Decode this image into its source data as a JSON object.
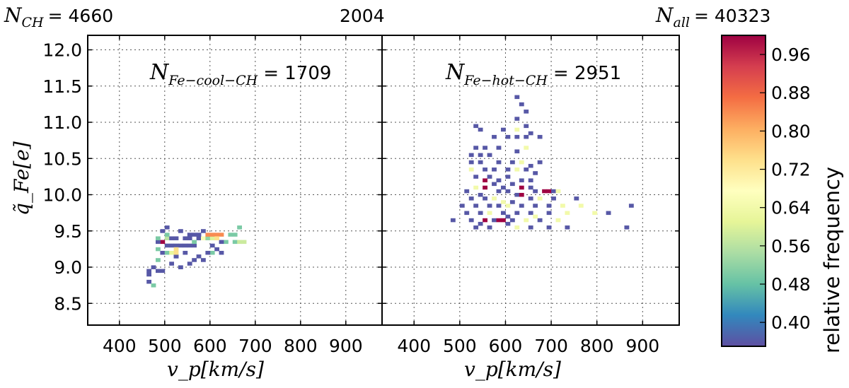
{
  "header": {
    "left_var": "N",
    "left_sub": "CH",
    "left_value": "= 4660",
    "center": "2004",
    "right_var": "N",
    "right_sub": "all",
    "right_value": "= 40323"
  },
  "chart_data": {
    "type": "heatmap",
    "xlabel": "v_p[km/s]",
    "ylabel": "q̃_Fe[e]",
    "colorbar_label": "relative frequency",
    "colorbar_ticks": [
      "0.40",
      "0.48",
      "0.56",
      "0.64",
      "0.72",
      "0.80",
      "0.88",
      "0.96"
    ],
    "colorbar_range": [
      0.35,
      1.0
    ],
    "colormap": [
      "#5e4fa2",
      "#3288bd",
      "#66c2a5",
      "#abdda4",
      "#e6f598",
      "#ffffbf",
      "#fee08b",
      "#fdae61",
      "#f46d43",
      "#d53e4f",
      "#9e0142"
    ],
    "panels": [
      {
        "annotation_var": "N",
        "annotation_sub": "Fe−cool−CH",
        "annotation_value": "= 1709",
        "xlim": [
          330,
          980
        ],
        "ylim": [
          8.2,
          12.2
        ],
        "xticks": [
          "400",
          "500",
          "600",
          "700",
          "800",
          "900"
        ],
        "xtick_values": [
          400,
          500,
          600,
          700,
          800,
          900
        ],
        "yticks": [
          "8.5",
          "9.0",
          "9.5",
          "10.0",
          "10.5",
          "11.0",
          "11.5",
          "12.0"
        ],
        "ytick_values": [
          8.5,
          9.0,
          9.5,
          10.0,
          10.5,
          11.0,
          11.5,
          12.0
        ],
        "bin_size": [
          10,
          0.05
        ],
        "cells": [
          [
            465,
            8.8,
            0.36
          ],
          [
            475,
            8.75,
            0.5
          ],
          [
            465,
            8.9,
            0.36
          ],
          [
            465,
            8.95,
            0.36
          ],
          [
            485,
            8.95,
            0.36
          ],
          [
            495,
            8.95,
            0.36
          ],
          [
            475,
            9.0,
            0.36
          ],
          [
            535,
            9.0,
            0.36
          ],
          [
            485,
            9.1,
            0.5
          ],
          [
            495,
            9.2,
            0.36
          ],
          [
            505,
            9.2,
            0.5
          ],
          [
            515,
            9.2,
            0.62
          ],
          [
            485,
            9.25,
            0.5
          ],
          [
            505,
            9.3,
            0.36
          ],
          [
            515,
            9.3,
            0.36
          ],
          [
            525,
            9.3,
            0.36
          ],
          [
            535,
            9.3,
            0.36
          ],
          [
            545,
            9.3,
            0.36
          ],
          [
            555,
            9.3,
            0.36
          ],
          [
            565,
            9.3,
            0.36
          ],
          [
            495,
            9.35,
            1.0
          ],
          [
            485,
            9.35,
            0.36
          ],
          [
            485,
            9.4,
            0.5
          ],
          [
            505,
            9.4,
            0.56
          ],
          [
            515,
            9.4,
            0.36
          ],
          [
            525,
            9.4,
            0.36
          ],
          [
            545,
            9.4,
            0.36
          ],
          [
            555,
            9.4,
            0.36
          ],
          [
            575,
            9.4,
            0.36
          ],
          [
            585,
            9.4,
            0.66
          ],
          [
            595,
            9.4,
            0.52
          ],
          [
            605,
            9.4,
            0.6
          ],
          [
            595,
            9.45,
            0.84
          ],
          [
            605,
            9.45,
            0.84
          ],
          [
            615,
            9.45,
            0.84
          ],
          [
            625,
            9.45,
            0.84
          ],
          [
            645,
            9.45,
            0.5
          ],
          [
            655,
            9.45,
            0.5
          ],
          [
            585,
            9.5,
            0.36
          ],
          [
            505,
            9.55,
            0.36
          ],
          [
            535,
            9.5,
            0.36
          ],
          [
            565,
            9.45,
            0.36
          ],
          [
            635,
            9.35,
            0.5
          ],
          [
            655,
            9.35,
            0.5
          ],
          [
            665,
            9.35,
            0.58
          ],
          [
            675,
            9.35,
            0.58
          ],
          [
            665,
            9.55,
            0.5
          ],
          [
            625,
            9.35,
            0.36
          ],
          [
            605,
            9.3,
            0.36
          ],
          [
            615,
            9.25,
            0.36
          ],
          [
            605,
            9.2,
            0.5
          ],
          [
            625,
            9.2,
            0.36
          ],
          [
            595,
            9.2,
            0.36
          ],
          [
            575,
            9.15,
            0.36
          ],
          [
            565,
            9.1,
            0.36
          ],
          [
            555,
            9.05,
            0.36
          ],
          [
            525,
            9.15,
            0.36
          ],
          [
            525,
            9.15,
            0.36
          ],
          [
            515,
            9.05,
            0.36
          ],
          [
            545,
            9.2,
            0.36
          ],
          [
            525,
            9.2,
            0.74
          ],
          [
            525,
            9.25,
            0.74
          ],
          [
            585,
            9.1,
            0.36
          ],
          [
            495,
            9.5,
            0.36
          ],
          [
            565,
            9.35,
            0.5
          ],
          [
            505,
            9.45,
            0.5
          ],
          [
            555,
            9.45,
            0.36
          ],
          [
            575,
            9.45,
            0.36
          ],
          [
            615,
            9.4,
            0.74
          ]
        ]
      },
      {
        "annotation_var": "N",
        "annotation_sub": "Fe−hot−CH",
        "annotation_value": "= 2951",
        "xlim": [
          330,
          980
        ],
        "ylim": [
          8.2,
          12.2
        ],
        "xticks": [
          "400",
          "500",
          "600",
          "700",
          "800",
          "900"
        ],
        "xtick_values": [
          400,
          500,
          600,
          700,
          800,
          900
        ],
        "yticks": [],
        "ytick_values": [
          8.5,
          9.0,
          9.5,
          10.0,
          10.5,
          11.0,
          11.5,
          12.0
        ],
        "bin_size": [
          10,
          0.05
        ],
        "cells": [
          [
            625,
            11.35,
            0.36
          ],
          [
            635,
            11.25,
            0.36
          ],
          [
            645,
            11.15,
            0.36
          ],
          [
            625,
            11.05,
            0.36
          ],
          [
            645,
            10.95,
            0.36
          ],
          [
            535,
            10.95,
            0.36
          ],
          [
            545,
            10.9,
            0.36
          ],
          [
            595,
            10.9,
            0.36
          ],
          [
            625,
            10.9,
            0.64
          ],
          [
            655,
            10.85,
            0.36
          ],
          [
            575,
            10.8,
            0.36
          ],
          [
            605,
            10.8,
            0.36
          ],
          [
            625,
            10.8,
            0.36
          ],
          [
            645,
            10.8,
            0.36
          ],
          [
            675,
            10.8,
            0.36
          ],
          [
            535,
            10.65,
            0.36
          ],
          [
            555,
            10.65,
            0.36
          ],
          [
            585,
            10.65,
            0.36
          ],
          [
            625,
            10.6,
            0.36
          ],
          [
            645,
            10.65,
            0.64
          ],
          [
            525,
            10.55,
            0.36
          ],
          [
            545,
            10.55,
            0.36
          ],
          [
            565,
            10.55,
            0.36
          ],
          [
            525,
            10.45,
            0.36
          ],
          [
            545,
            10.45,
            0.36
          ],
          [
            585,
            10.45,
            0.36
          ],
          [
            615,
            10.45,
            0.36
          ],
          [
            635,
            10.45,
            0.64
          ],
          [
            655,
            10.4,
            0.36
          ],
          [
            675,
            10.45,
            0.36
          ],
          [
            525,
            10.35,
            0.64
          ],
          [
            555,
            10.35,
            0.36
          ],
          [
            575,
            10.35,
            0.36
          ],
          [
            605,
            10.35,
            0.36
          ],
          [
            625,
            10.35,
            0.64
          ],
          [
            645,
            10.35,
            0.36
          ],
          [
            665,
            10.3,
            0.36
          ],
          [
            535,
            10.25,
            0.36
          ],
          [
            565,
            10.25,
            0.36
          ],
          [
            555,
            10.2,
            1.0
          ],
          [
            585,
            10.2,
            0.36
          ],
          [
            605,
            10.25,
            0.36
          ],
          [
            635,
            10.2,
            0.36
          ],
          [
            655,
            10.2,
            0.36
          ],
          [
            535,
            10.1,
            0.64
          ],
          [
            555,
            10.1,
            1.0
          ],
          [
            575,
            10.15,
            0.36
          ],
          [
            595,
            10.1,
            0.36
          ],
          [
            615,
            10.15,
            0.36
          ],
          [
            635,
            10.1,
            1.0
          ],
          [
            655,
            10.1,
            0.36
          ],
          [
            515,
            10.05,
            0.36
          ],
          [
            545,
            10.0,
            0.36
          ],
          [
            585,
            10.05,
            0.36
          ],
          [
            605,
            10.05,
            0.36
          ],
          [
            625,
            10.0,
            0.36
          ],
          [
            635,
            10.0,
            1.0
          ],
          [
            665,
            10.05,
            0.36
          ],
          [
            685,
            10.05,
            1.0
          ],
          [
            695,
            10.05,
            1.0
          ],
          [
            705,
            10.05,
            0.36
          ],
          [
            715,
            10.05,
            0.64
          ],
          [
            525,
            9.95,
            0.36
          ],
          [
            555,
            9.95,
            0.36
          ],
          [
            575,
            9.95,
            0.64
          ],
          [
            595,
            9.9,
            0.64
          ],
          [
            615,
            9.9,
            0.36
          ],
          [
            655,
            9.95,
            0.36
          ],
          [
            675,
            9.95,
            0.64
          ],
          [
            705,
            9.95,
            0.36
          ],
          [
            755,
            9.95,
            0.36
          ],
          [
            505,
            9.85,
            0.36
          ],
          [
            535,
            9.85,
            0.36
          ],
          [
            565,
            9.85,
            0.36
          ],
          [
            585,
            9.85,
            0.36
          ],
          [
            605,
            9.85,
            0.64
          ],
          [
            635,
            9.85,
            0.36
          ],
          [
            665,
            9.85,
            0.36
          ],
          [
            695,
            9.85,
            0.36
          ],
          [
            725,
            9.85,
            0.64
          ],
          [
            765,
            9.85,
            0.64
          ],
          [
            515,
            9.75,
            0.36
          ],
          [
            545,
            9.75,
            0.36
          ],
          [
            565,
            9.75,
            0.64
          ],
          [
            595,
            9.75,
            0.36
          ],
          [
            625,
            9.75,
            0.36
          ],
          [
            655,
            9.75,
            0.36
          ],
          [
            695,
            9.75,
            0.36
          ],
          [
            735,
            9.75,
            0.64
          ],
          [
            825,
            9.75,
            0.36
          ],
          [
            795,
            9.75,
            0.64
          ],
          [
            875,
            9.85,
            0.36
          ],
          [
            485,
            9.65,
            0.36
          ],
          [
            525,
            9.65,
            0.36
          ],
          [
            555,
            9.65,
            1.0
          ],
          [
            575,
            9.65,
            0.36
          ],
          [
            585,
            9.65,
            1.0
          ],
          [
            595,
            9.65,
            1.0
          ],
          [
            615,
            9.65,
            0.36
          ],
          [
            645,
            9.65,
            0.64
          ],
          [
            675,
            9.65,
            0.36
          ],
          [
            535,
            9.55,
            0.36
          ],
          [
            565,
            9.55,
            0.36
          ],
          [
            605,
            9.6,
            0.36
          ],
          [
            625,
            9.55,
            0.64
          ],
          [
            655,
            9.55,
            0.36
          ],
          [
            695,
            9.55,
            0.36
          ],
          [
            735,
            9.55,
            0.36
          ],
          [
            865,
            9.55,
            0.36
          ],
          [
            545,
            9.6,
            0.36
          ],
          [
            605,
            9.7,
            0.36
          ],
          [
            665,
            9.7,
            0.64
          ],
          [
            715,
            9.65,
            0.64
          ]
        ]
      }
    ]
  }
}
